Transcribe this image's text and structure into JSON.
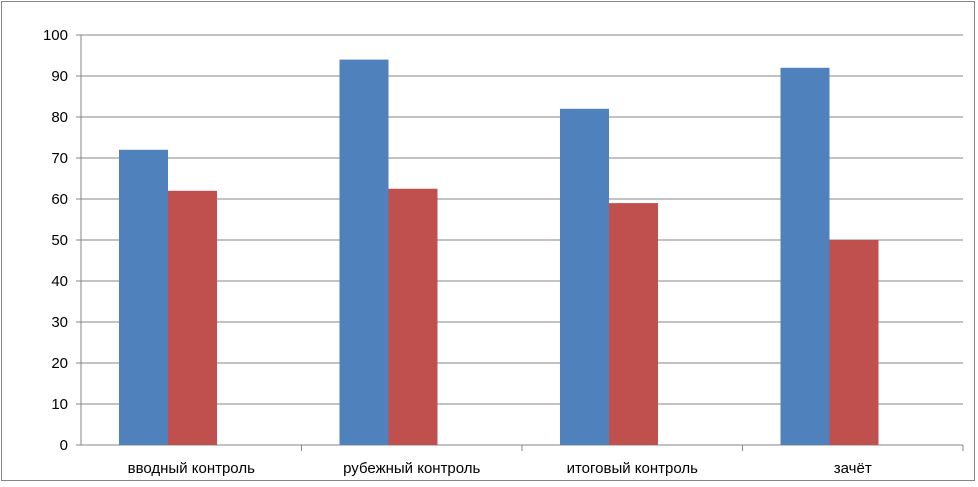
{
  "chart_data": {
    "type": "bar",
    "title": "",
    "xlabel": "",
    "ylabel": "",
    "categories": [
      "вводный контроль",
      "рубежный контроль",
      "итоговый контроль",
      "зачёт"
    ],
    "series": [
      {
        "values": [
          72,
          94,
          82,
          92
        ],
        "color": "#4F81BD"
      },
      {
        "values": [
          62,
          62.5,
          59,
          50
        ],
        "color": "#C0504D"
      }
    ],
    "ylim": [
      0,
      100
    ],
    "yticks": [
      "0",
      "10",
      "20",
      "30",
      "40",
      "50",
      "60",
      "70",
      "80",
      "90",
      "100"
    ],
    "grid": true,
    "legend": false
  }
}
